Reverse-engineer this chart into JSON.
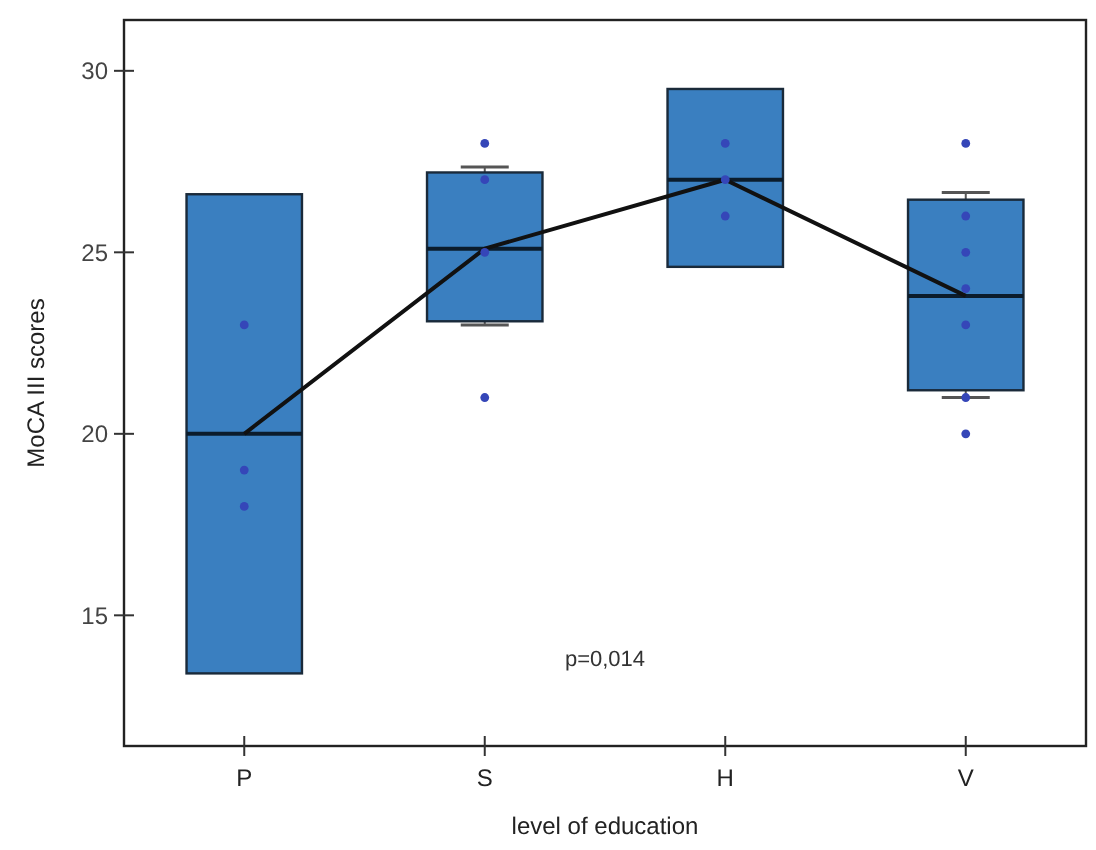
{
  "chart_data": {
    "type": "box",
    "xlabel": "level of education",
    "ylabel": "MoCA III scores",
    "categories": [
      "P",
      "S",
      "H",
      "V"
    ],
    "ylim": [
      11.4,
      31.4
    ],
    "yticks": [
      15,
      20,
      25,
      30
    ],
    "grid": false,
    "annotations": [
      "p=0,014"
    ],
    "series": [
      {
        "color": "#3a7fc0",
        "boxes": [
          {
            "low": 13.4,
            "q1": 13.4,
            "median": 20,
            "q3": 26.6,
            "high": 26.6
          },
          {
            "low": 23.0,
            "q1": 23.1,
            "median": 25.1,
            "q3": 27.2,
            "high": 27.35
          },
          {
            "low": 24.6,
            "q1": 24.6,
            "median": 27,
            "q3": 29.5,
            "high": 29.5
          },
          {
            "low": 21.0,
            "q1": 21.2,
            "median": 23.8,
            "q3": 26.45,
            "high": 26.65
          }
        ]
      },
      {
        "type": "line",
        "color": "#111111",
        "marker": "none",
        "line_style": "solid",
        "values": [
          20,
          25.1,
          27,
          23.8
        ]
      },
      {
        "type": "scatter",
        "color": "#3546b8",
        "marker": "circle",
        "x": [
          "P",
          "P",
          "P",
          "S",
          "S",
          "S",
          "S",
          "H",
          "H",
          "H",
          "V",
          "V",
          "V",
          "V",
          "V",
          "V",
          "V"
        ],
        "values": [
          23,
          19,
          18,
          28,
          27,
          25,
          21,
          28,
          27,
          26,
          28,
          26,
          25,
          24,
          23,
          21,
          20
        ]
      }
    ]
  }
}
